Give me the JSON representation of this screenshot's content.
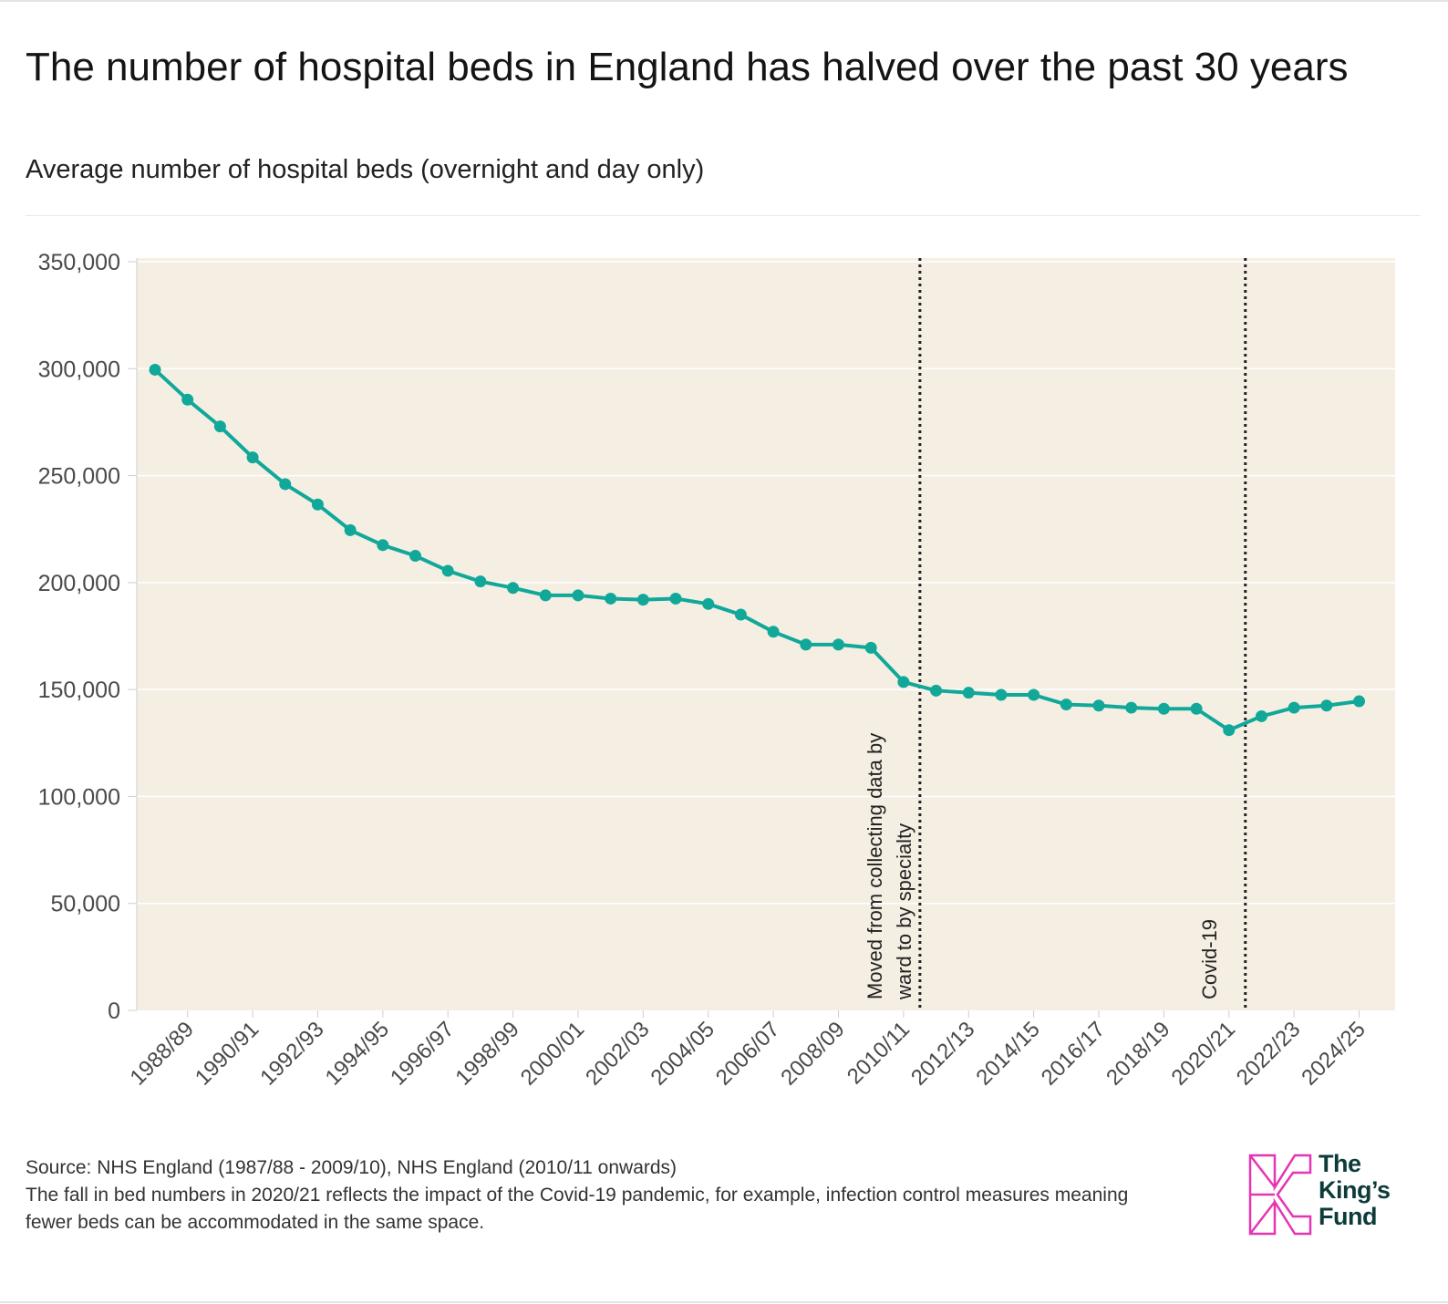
{
  "title": "The number of hospital beds in England has halved over the past 30 years",
  "subtitle": "Average number of hospital beds (overnight and day only)",
  "footer": {
    "source": "Source: NHS England (1987/88 - 2009/10), NHS England (2010/11 onwards)",
    "note": "The fall in bed numbers in 2020/21 reflects the impact of the Covid-19 pandemic, for example, infection control measures meaning fewer beds can be accommodated in the same space."
  },
  "logo": {
    "line1": "The",
    "line2": "King’s",
    "line3": "Fund"
  },
  "colors": {
    "line": "#11a89a",
    "plot_bg": "#f5efe3",
    "grid": "#ffffff",
    "logo_mark": "#e535b3",
    "logo_text": "#0d3b3a"
  },
  "chart_data": {
    "type": "line",
    "title": "The number of hospital beds in England has halved over the past 30 years",
    "ylabel": "",
    "xlabel": "",
    "ylim": [
      0,
      350000
    ],
    "yticks": [
      0,
      50000,
      100000,
      150000,
      200000,
      250000,
      300000,
      350000
    ],
    "ytick_labels": [
      "0",
      "50,000",
      "100,000",
      "150,000",
      "200,000",
      "250,000",
      "300,000",
      "350,000"
    ],
    "categories": [
      "1987/88",
      "1988/89",
      "1989/90",
      "1990/91",
      "1991/92",
      "1992/93",
      "1993/94",
      "1994/95",
      "1995/96",
      "1996/97",
      "1997/98",
      "1998/99",
      "1999/00",
      "2000/01",
      "2001/02",
      "2002/03",
      "2003/04",
      "2004/05",
      "2005/06",
      "2006/07",
      "2007/08",
      "2008/09",
      "2009/10",
      "2010/11",
      "2011/12",
      "2012/13",
      "2013/14",
      "2014/15",
      "2015/16",
      "2016/17",
      "2017/18",
      "2018/19",
      "2019/20",
      "2020/21",
      "2021/22",
      "2022/23",
      "2023/24",
      "2024/25"
    ],
    "x_tick_labels": [
      "1988/89",
      "1990/91",
      "1992/93",
      "1994/95",
      "1996/97",
      "1998/99",
      "2000/01",
      "2002/03",
      "2004/05",
      "2006/07",
      "2008/09",
      "2010/11",
      "2012/13",
      "2014/15",
      "2016/17",
      "2018/19",
      "2020/21",
      "2022/23",
      "2024/25"
    ],
    "series": [
      {
        "name": "Average number of hospital beds",
        "values": [
          299500,
          285500,
          273000,
          258500,
          246000,
          236500,
          224500,
          217500,
          212500,
          205500,
          200500,
          197500,
          194000,
          194000,
          192500,
          192000,
          192500,
          190000,
          185000,
          177000,
          171000,
          171000,
          169500,
          153500,
          149500,
          148500,
          147500,
          147500,
          143000,
          142500,
          141500,
          141000,
          141000,
          131000,
          137500,
          141500,
          142500,
          144500
        ]
      }
    ],
    "annotations": [
      {
        "category": "2010/11",
        "text_lines": [
          "Moved from collecting data by",
          "ward to by specialty"
        ],
        "style": "dotted-vertical-line"
      },
      {
        "category": "2020/21",
        "text_lines": [
          "Covid-19"
        ],
        "style": "dotted-vertical-line"
      }
    ],
    "grid": true,
    "legend": "none"
  }
}
